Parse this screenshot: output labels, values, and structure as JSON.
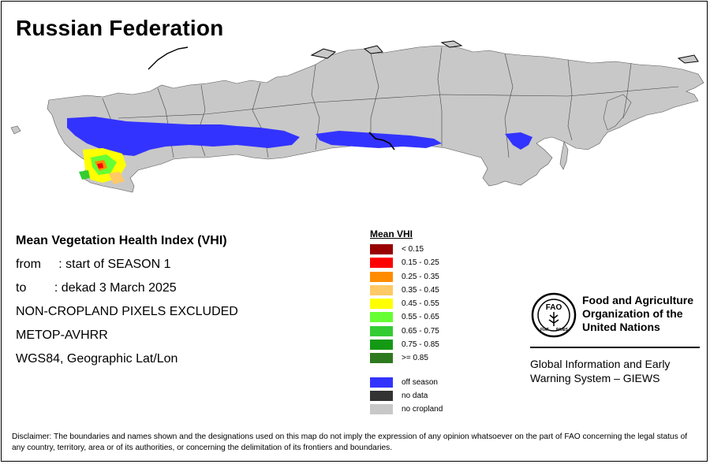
{
  "title": "Russian Federation",
  "info": {
    "heading": "Mean Vegetation Health Index (VHI)",
    "from": "from     : start of SEASON 1",
    "to": "to        : dekad 3 March 2025",
    "excluded": "NON-CROPLAND PIXELS EXCLUDED",
    "sensor": "METOP-AVHRR",
    "projection": "WGS84, Geographic Lat/Lon"
  },
  "legend": {
    "title": "Mean VHI",
    "items": [
      {
        "label": "< 0.15",
        "color": "#990000"
      },
      {
        "label": "0.15 - 0.25",
        "color": "#ff0000"
      },
      {
        "label": "0.25 - 0.35",
        "color": "#ff8c00"
      },
      {
        "label": "0.35 - 0.45",
        "color": "#ffc966"
      },
      {
        "label": "0.45 - 0.55",
        "color": "#ffff00"
      },
      {
        "label": "0.55 - 0.65",
        "color": "#66ff33"
      },
      {
        "label": "0.65 - 0.75",
        "color": "#33cc33"
      },
      {
        "label": "0.75 - 0.85",
        "color": "#149914"
      },
      {
        "label": ">= 0.85",
        "color": "#2d7a1e"
      }
    ],
    "extra": [
      {
        "label": "off season",
        "color": "#3333ff"
      },
      {
        "label": "no data",
        "color": "#333333"
      },
      {
        "label": "no cropland",
        "color": "#c8c8c8"
      }
    ]
  },
  "fao": {
    "line1": "Food and Agriculture",
    "line2": "Organization of the",
    "line3": "United Nations",
    "giews1": "Global Information and Early",
    "giews2": "Warning System – GIEWS",
    "logo_text": "FAO",
    "motto_left": "FIAT",
    "motto_right": "PANIS"
  },
  "disclaimer": "Disclaimer: The boundaries and names shown and the designations used on this map do not imply the expression of any opinion whatsoever on the part of FAO concerning the legal status of any country, territory, area or of its authorities, or concerning the delimitation of its frontiers and boundaries."
}
